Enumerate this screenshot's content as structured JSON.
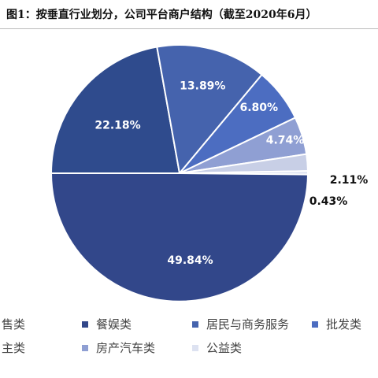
{
  "figure": {
    "title": "图1：按垂直行业划分，公司平台商户结构（截至2020年6月）"
  },
  "chart_data": {
    "type": "pie",
    "title": "图1：按垂直行业划分，公司平台商户结构（截至2020年6月）",
    "start_angle_deg": 180,
    "direction": "clockwise",
    "slices": [
      {
        "label": "零售类",
        "visible_label": "售类",
        "value": 22.18,
        "value_text": "22.18%",
        "color": "#2f4b8d"
      },
      {
        "label": "居民与商务服务",
        "value": 13.89,
        "value_text": "13.89%",
        "color": "#4563ad"
      },
      {
        "label": "批发类",
        "value": 6.8,
        "value_text": "6.80%",
        "color": "#4c6dc1"
      },
      {
        "label": "房产汽车类",
        "value": 4.74,
        "value_text": "4.74%",
        "color": "#8f9fd3"
      },
      {
        "label": "住类",
        "visible_label": "主类",
        "value": 2.11,
        "value_text": "2.11%",
        "color": "#c8cfe6"
      },
      {
        "label": "公益类",
        "value": 0.43,
        "value_text": "0.43%",
        "color": "#dde2f1"
      },
      {
        "label": "餐娱类",
        "value": 49.84,
        "value_text": "49.84%",
        "color": "#32478a"
      }
    ]
  }
}
